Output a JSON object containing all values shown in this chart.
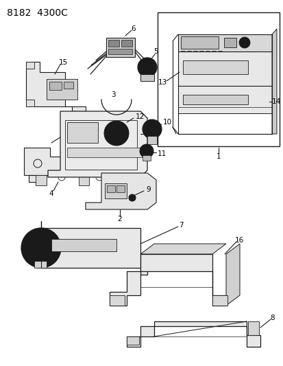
{
  "title": "8182  4300C",
  "bg_color": "#ffffff",
  "line_color": "#1a1a1a",
  "title_fontsize": 10,
  "label_fontsize": 7.5,
  "fig_width": 4.14,
  "fig_height": 5.33,
  "dpi": 100
}
